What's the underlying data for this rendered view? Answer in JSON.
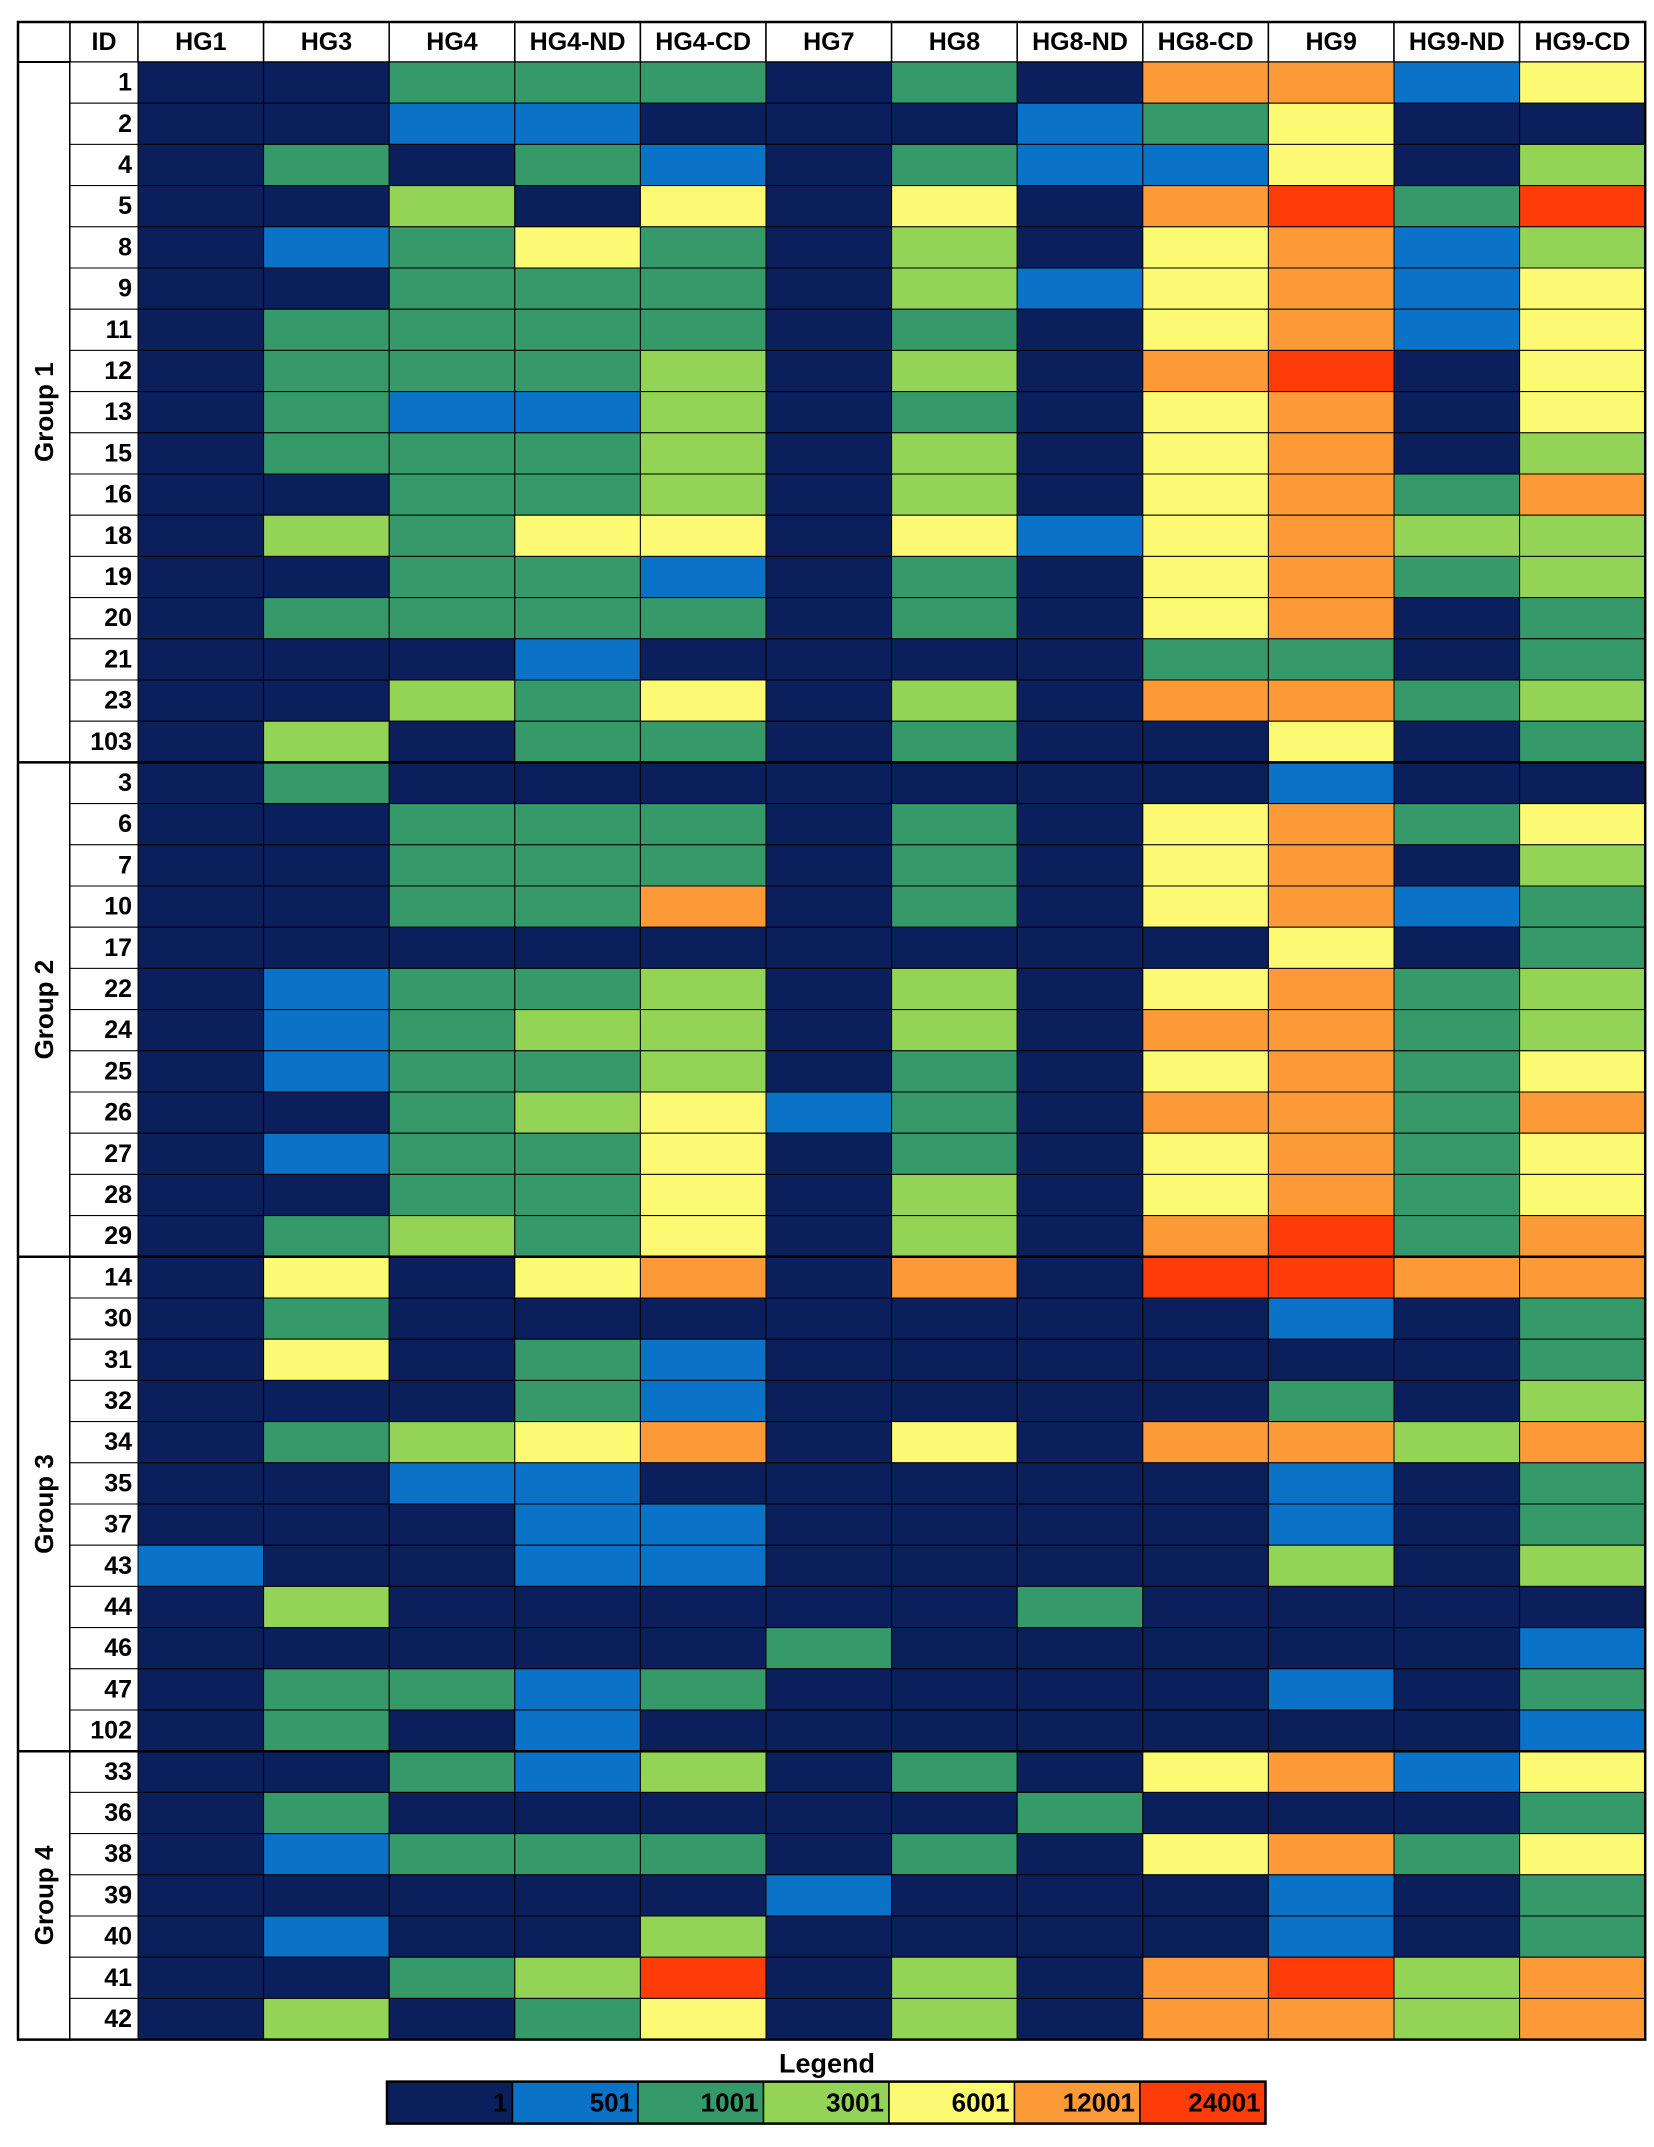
{
  "chart_data": {
    "type": "heatmap",
    "id_header": "ID",
    "columns": [
      "HG1",
      "HG3",
      "HG4",
      "HG4-ND",
      "HG4-CD",
      "HG7",
      "HG8",
      "HG8-ND",
      "HG8-CD",
      "HG9",
      "HG9-ND",
      "HG9-CD"
    ],
    "groups": [
      {
        "name": "Group 1",
        "rows": [
          {
            "id": "1",
            "values": [
              1,
              1,
              1001,
              1001,
              1001,
              1,
              1001,
              1,
              12001,
              12001,
              501,
              6001
            ]
          },
          {
            "id": "2",
            "values": [
              1,
              1,
              501,
              501,
              1,
              1,
              1,
              501,
              1001,
              6001,
              1,
              1
            ]
          },
          {
            "id": "4",
            "values": [
              1,
              1001,
              1,
              1001,
              501,
              1,
              1001,
              501,
              501,
              6001,
              1,
              3001
            ]
          },
          {
            "id": "5",
            "values": [
              1,
              1,
              3001,
              1,
              6001,
              1,
              6001,
              1,
              12001,
              24001,
              1001,
              24001
            ]
          },
          {
            "id": "8",
            "values": [
              1,
              501,
              1001,
              6001,
              1001,
              1,
              3001,
              1,
              6001,
              12001,
              501,
              3001
            ]
          },
          {
            "id": "9",
            "values": [
              1,
              1,
              1001,
              1001,
              1001,
              1,
              3001,
              501,
              6001,
              12001,
              501,
              6001
            ]
          },
          {
            "id": "11",
            "values": [
              1,
              1001,
              1001,
              1001,
              1001,
              1,
              1001,
              1,
              6001,
              12001,
              501,
              6001
            ]
          },
          {
            "id": "12",
            "values": [
              1,
              1001,
              1001,
              1001,
              3001,
              1,
              3001,
              1,
              12001,
              24001,
              1,
              6001
            ]
          },
          {
            "id": "13",
            "values": [
              1,
              1001,
              501,
              501,
              3001,
              1,
              1001,
              1,
              6001,
              12001,
              1,
              6001
            ]
          },
          {
            "id": "15",
            "values": [
              1,
              1001,
              1001,
              1001,
              3001,
              1,
              3001,
              1,
              6001,
              12001,
              1,
              3001
            ]
          },
          {
            "id": "16",
            "values": [
              1,
              1,
              1001,
              1001,
              3001,
              1,
              3001,
              1,
              6001,
              12001,
              1001,
              12001
            ]
          },
          {
            "id": "18",
            "values": [
              1,
              3001,
              1001,
              6001,
              6001,
              1,
              6001,
              501,
              6001,
              12001,
              3001,
              3001
            ]
          },
          {
            "id": "19",
            "values": [
              1,
              1,
              1001,
              1001,
              501,
              1,
              1001,
              1,
              6001,
              12001,
              1001,
              3001
            ]
          },
          {
            "id": "20",
            "values": [
              1,
              1001,
              1001,
              1001,
              1001,
              1,
              1001,
              1,
              6001,
              12001,
              1,
              1001
            ]
          },
          {
            "id": "21",
            "values": [
              1,
              1,
              1,
              501,
              1,
              1,
              1,
              1,
              1001,
              1001,
              1,
              1001
            ]
          },
          {
            "id": "23",
            "values": [
              1,
              1,
              3001,
              1001,
              6001,
              1,
              3001,
              1,
              12001,
              12001,
              1001,
              3001
            ]
          },
          {
            "id": "103",
            "values": [
              1,
              3001,
              1,
              1001,
              1001,
              1,
              1001,
              1,
              1,
              6001,
              1,
              1001
            ]
          }
        ]
      },
      {
        "name": "Group 2",
        "rows": [
          {
            "id": "3",
            "values": [
              1,
              1001,
              1,
              1,
              1,
              1,
              1,
              1,
              1,
              501,
              1,
              1
            ]
          },
          {
            "id": "6",
            "values": [
              1,
              1,
              1001,
              1001,
              1001,
              1,
              1001,
              1,
              6001,
              12001,
              1001,
              6001
            ]
          },
          {
            "id": "7",
            "values": [
              1,
              1,
              1001,
              1001,
              1001,
              1,
              1001,
              1,
              6001,
              12001,
              1,
              3001
            ]
          },
          {
            "id": "10",
            "values": [
              1,
              1,
              1001,
              1001,
              12001,
              1,
              1001,
              1,
              6001,
              12001,
              501,
              1001
            ]
          },
          {
            "id": "17",
            "values": [
              1,
              1,
              1,
              1,
              1,
              1,
              1,
              1,
              1,
              6001,
              1,
              1001
            ]
          },
          {
            "id": "22",
            "values": [
              1,
              501,
              1001,
              1001,
              3001,
              1,
              3001,
              1,
              6001,
              12001,
              1001,
              3001
            ]
          },
          {
            "id": "24",
            "values": [
              1,
              501,
              1001,
              3001,
              3001,
              1,
              3001,
              1,
              12001,
              12001,
              1001,
              3001
            ]
          },
          {
            "id": "25",
            "values": [
              1,
              501,
              1001,
              1001,
              3001,
              1,
              1001,
              1,
              6001,
              12001,
              1001,
              6001
            ]
          },
          {
            "id": "26",
            "values": [
              1,
              1,
              1001,
              3001,
              6001,
              501,
              1001,
              1,
              12001,
              12001,
              1001,
              12001
            ]
          },
          {
            "id": "27",
            "values": [
              1,
              501,
              1001,
              1001,
              6001,
              1,
              1001,
              1,
              6001,
              12001,
              1001,
              6001
            ]
          },
          {
            "id": "28",
            "values": [
              1,
              1,
              1001,
              1001,
              6001,
              1,
              3001,
              1,
              6001,
              12001,
              1001,
              6001
            ]
          },
          {
            "id": "29",
            "values": [
              1,
              1001,
              3001,
              1001,
              6001,
              1,
              3001,
              1,
              12001,
              24001,
              1001,
              12001
            ]
          }
        ]
      },
      {
        "name": "Group 3",
        "rows": [
          {
            "id": "14",
            "values": [
              1,
              6001,
              1,
              6001,
              12001,
              1,
              12001,
              1,
              24001,
              24001,
              12001,
              12001
            ]
          },
          {
            "id": "30",
            "values": [
              1,
              1001,
              1,
              1,
              1,
              1,
              1,
              1,
              1,
              501,
              1,
              1001
            ]
          },
          {
            "id": "31",
            "values": [
              1,
              6001,
              1,
              1001,
              501,
              1,
              1,
              1,
              1,
              1,
              1,
              1001
            ]
          },
          {
            "id": "32",
            "values": [
              1,
              1,
              1,
              1001,
              501,
              1,
              1,
              1,
              1,
              1001,
              1,
              3001
            ]
          },
          {
            "id": "34",
            "values": [
              1,
              1001,
              3001,
              6001,
              12001,
              1,
              6001,
              1,
              12001,
              12001,
              3001,
              12001
            ]
          },
          {
            "id": "35",
            "values": [
              1,
              1,
              501,
              501,
              1,
              1,
              1,
              1,
              1,
              501,
              1,
              1001
            ]
          },
          {
            "id": "37",
            "values": [
              1,
              1,
              1,
              501,
              501,
              1,
              1,
              1,
              1,
              501,
              1,
              1001
            ]
          },
          {
            "id": "43",
            "values": [
              501,
              1,
              1,
              501,
              501,
              1,
              1,
              1,
              1,
              3001,
              1,
              3001
            ]
          },
          {
            "id": "44",
            "values": [
              1,
              3001,
              1,
              1,
              1,
              1,
              1,
              1001,
              1,
              1,
              1,
              1
            ]
          },
          {
            "id": "46",
            "values": [
              1,
              1,
              1,
              1,
              1,
              1001,
              1,
              1,
              1,
              1,
              1,
              501
            ]
          },
          {
            "id": "47",
            "values": [
              1,
              1001,
              1001,
              501,
              1001,
              1,
              1,
              1,
              1,
              501,
              1,
              1001
            ]
          },
          {
            "id": "102",
            "values": [
              1,
              1001,
              1,
              501,
              1,
              1,
              1,
              1,
              1,
              1,
              1,
              501
            ]
          }
        ]
      },
      {
        "name": "Group 4",
        "rows": [
          {
            "id": "33",
            "values": [
              1,
              1,
              1001,
              501,
              3001,
              1,
              1001,
              1,
              6001,
              12001,
              501,
              6001
            ]
          },
          {
            "id": "36",
            "values": [
              1,
              1001,
              1,
              1,
              1,
              1,
              1,
              1001,
              1,
              1,
              1,
              1001
            ]
          },
          {
            "id": "38",
            "values": [
              1,
              501,
              1001,
              1001,
              1001,
              1,
              1001,
              1,
              6001,
              12001,
              1001,
              6001
            ]
          },
          {
            "id": "39",
            "values": [
              1,
              1,
              1,
              1,
              1,
              501,
              1,
              1,
              1,
              501,
              1,
              1001
            ]
          },
          {
            "id": "40",
            "values": [
              1,
              501,
              1,
              1,
              3001,
              1,
              1,
              1,
              1,
              501,
              1,
              1001
            ]
          },
          {
            "id": "41",
            "values": [
              1,
              1,
              1001,
              3001,
              24001,
              1,
              3001,
              1,
              12001,
              24001,
              3001,
              12001
            ]
          },
          {
            "id": "42",
            "values": [
              1,
              3001,
              1,
              1001,
              6001,
              1,
              3001,
              1,
              12001,
              12001,
              3001,
              12001
            ]
          }
        ]
      }
    ],
    "legend": {
      "title": "Legend",
      "bins": [
        {
          "label": "1",
          "color": "#0b1f5c"
        },
        {
          "label": "501",
          "color": "#0a72c7"
        },
        {
          "label": "1001",
          "color": "#35996a"
        },
        {
          "label": "3001",
          "color": "#93d456"
        },
        {
          "label": "6001",
          "color": "#fbfa72"
        },
        {
          "label": "12001",
          "color": "#fd9a38"
        },
        {
          "label": "24001",
          "color": "#fe3c0a"
        }
      ]
    }
  }
}
